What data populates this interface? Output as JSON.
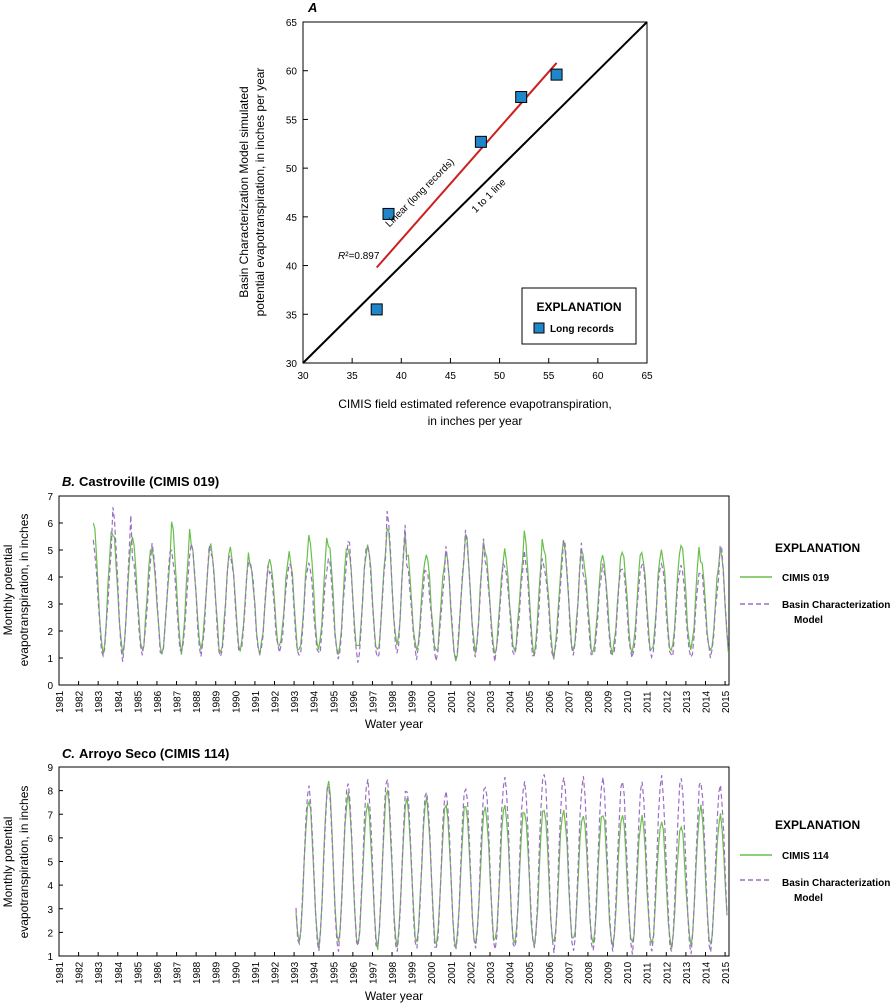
{
  "chart_data": [
    {
      "type": "scatter",
      "panel_letter": "A",
      "xlabel": [
        "CIMIS field estimated reference evapotranspiration,",
        "in inches per year"
      ],
      "ylabel": [
        "Basin Characterization Model simulated",
        "potential evapotranspiration, in inches per year"
      ],
      "xlim": [
        30,
        65
      ],
      "ylim": [
        30,
        65
      ],
      "xticks": [
        30,
        35,
        40,
        45,
        50,
        55,
        60,
        65
      ],
      "yticks": [
        30,
        35,
        40,
        45,
        50,
        55,
        60,
        65
      ],
      "series": [
        {
          "name": "Long records",
          "color": "#1f86c9",
          "marker": "square",
          "x": [
            37.5,
            38.7,
            48.1,
            52.2,
            55.8
          ],
          "y": [
            35.5,
            45.3,
            52.7,
            57.3,
            59.6
          ]
        }
      ],
      "fit_line": {
        "label": "Linear (long records)",
        "color": "#cc1f1f",
        "x": [
          37.5,
          55.8
        ],
        "y": [
          39.8,
          60.8
        ]
      },
      "identity_line": {
        "label": "1 to 1 line",
        "x": [
          30,
          65
        ],
        "y": [
          30,
          65
        ]
      },
      "annotation": {
        "r_label": "R",
        "r_value": "²=0.897"
      },
      "legend": {
        "title": "EXPLANATION",
        "placement": "bottom-right"
      }
    },
    {
      "type": "line",
      "panel_letter": "B.",
      "title": "Castroville (CIMIS  019)",
      "xlabel": "Water year",
      "ylabel": [
        "Monthly potential",
        "evapotranspiration, in inches"
      ],
      "x_tick_labels": [
        "1981",
        "1982",
        "1983",
        "1984",
        "1985",
        "1986",
        "1987",
        "1988",
        "1989",
        "1990",
        "1991",
        "1992",
        "1993",
        "1994",
        "1995",
        "1996",
        "1997",
        "1998",
        "1999",
        "2000",
        "2001",
        "2002",
        "2003",
        "2004",
        "2005",
        "2006",
        "2007",
        "2008",
        "2009",
        "2010",
        "2011",
        "2012",
        "2013",
        "2014",
        "2015"
      ],
      "xlim": [
        1981,
        2015.2
      ],
      "ylim": [
        0,
        7
      ],
      "yticks": [
        0,
        1,
        2,
        3,
        4,
        5,
        6,
        7
      ],
      "start_year": 1982.75,
      "series": [
        {
          "name": "CIMIS 019",
          "color": "#6abf4b",
          "dash": "",
          "annual_min": [
            1.2,
            1.25,
            1.3,
            1.2,
            1.3,
            1.4,
            1.2,
            1.3,
            1.2,
            1.4,
            1.2,
            1.3,
            1.1,
            1.3,
            1.2,
            1.5,
            1.3,
            1.2,
            0.9,
            1.3,
            1.2,
            1.3,
            1.2,
            1.1,
            1.3,
            1.2,
            1.2,
            1.2,
            1.2,
            1.2,
            1.3,
            1.2,
            1.0
          ],
          "annual_max": [
            6.0,
            5.6,
            5.4,
            4.9,
            6.0,
            5.2,
            5.1,
            5.0,
            4.5,
            4.7,
            4.9,
            5.6,
            5.3,
            5.1,
            5.2,
            5.9,
            4.9,
            4.8,
            4.9,
            5.6,
            4.9,
            4.9,
            5.6,
            5.0,
            5.3,
            4.7,
            4.8,
            5.0,
            4.9,
            5.0,
            5.3,
            4.7,
            5.1
          ]
        },
        {
          "name": "Basin Characterization Model",
          "color": "#9b6fc4",
          "dash": "5,3",
          "annual_min": [
            1.1,
            1.0,
            1.2,
            1.1,
            1.2,
            1.1,
            1.0,
            1.2,
            1.1,
            1.2,
            1.0,
            1.1,
            1.0,
            0.9,
            1.0,
            1.2,
            1.1,
            1.0,
            1.0,
            1.1,
            1.0,
            1.1,
            1.0,
            1.0,
            1.1,
            1.0,
            1.0,
            1.0,
            1.0,
            1.0,
            1.0,
            1.1,
            1.0
          ],
          "annual_max": [
            5.2,
            6.5,
            4.7,
            5.2,
            4.9,
            5.3,
            5.0,
            4.8,
            4.6,
            4.3,
            4.6,
            4.5,
            4.7,
            5.4,
            5.1,
            6.3,
            4.4,
            4.2,
            5.0,
            5.6,
            4.6,
            4.4,
            4.9,
            4.4,
            5.5,
            4.2,
            4.5,
            4.4,
            4.6,
            4.5,
            4.4,
            4.2,
            5.2
          ]
        }
      ],
      "legend": {
        "title": "EXPLANATION",
        "placement": "right"
      }
    },
    {
      "type": "line",
      "panel_letter": "C.",
      "title": "Arroyo Seco (CIMIS  114)",
      "xlabel": "Water year",
      "ylabel": [
        "Monthly potential",
        "evapotranspiration, in inches"
      ],
      "x_tick_labels": [
        "1981",
        "1982",
        "1983",
        "1984",
        "1985",
        "1986",
        "1987",
        "1988",
        "1989",
        "1990",
        "1991",
        "1992",
        "1993",
        "1994",
        "1995",
        "1996",
        "1997",
        "1998",
        "1999",
        "2000",
        "2001",
        "2002",
        "2003",
        "2004",
        "2005",
        "2006",
        "2007",
        "2008",
        "2009",
        "2010",
        "2011",
        "2012",
        "2013",
        "2014",
        "2015"
      ],
      "xlim": [
        1981,
        2015.2
      ],
      "ylim": [
        1,
        9
      ],
      "yticks": [
        1,
        2,
        3,
        4,
        5,
        6,
        7,
        8,
        9
      ],
      "start_year": 1993.1,
      "series": [
        {
          "name": "CIMIS 114",
          "color": "#6abf4b",
          "dash": "",
          "annual_min": [
            1.6,
            1.4,
            1.6,
            1.5,
            1.4,
            1.5,
            1.6,
            1.5,
            1.4,
            1.5,
            1.6,
            1.5,
            1.4,
            1.5,
            1.6,
            1.5,
            1.4,
            1.5,
            1.5,
            1.4,
            1.5,
            1.5
          ],
          "annual_max": [
            7.6,
            8.4,
            7.8,
            7.4,
            8.0,
            7.6,
            7.6,
            7.4,
            7.4,
            7.3,
            7.4,
            7.2,
            7.3,
            7.2,
            7.0,
            7.1,
            7.0,
            6.9,
            6.7,
            6.5,
            7.3,
            6.9
          ]
        },
        {
          "name": "Basin Characterization Model",
          "color": "#9b6fc4",
          "dash": "5,3",
          "annual_min": [
            1.5,
            1.3,
            1.3,
            1.4,
            1.3,
            1.2,
            1.3,
            1.2,
            1.2,
            1.3,
            1.2,
            1.2,
            1.3,
            1.2,
            1.2,
            1.2,
            1.3,
            1.2,
            1.2,
            1.2,
            1.2,
            1.2
          ],
          "annual_max": [
            8.1,
            8.2,
            8.3,
            8.4,
            8.5,
            8.1,
            8.0,
            8.0,
            8.2,
            8.3,
            8.6,
            8.4,
            8.8,
            8.6,
            8.5,
            8.5,
            8.4,
            8.3,
            8.5,
            8.5,
            8.4,
            8.2
          ]
        }
      ],
      "legend": {
        "title": "EXPLANATION",
        "placement": "right"
      }
    }
  ]
}
